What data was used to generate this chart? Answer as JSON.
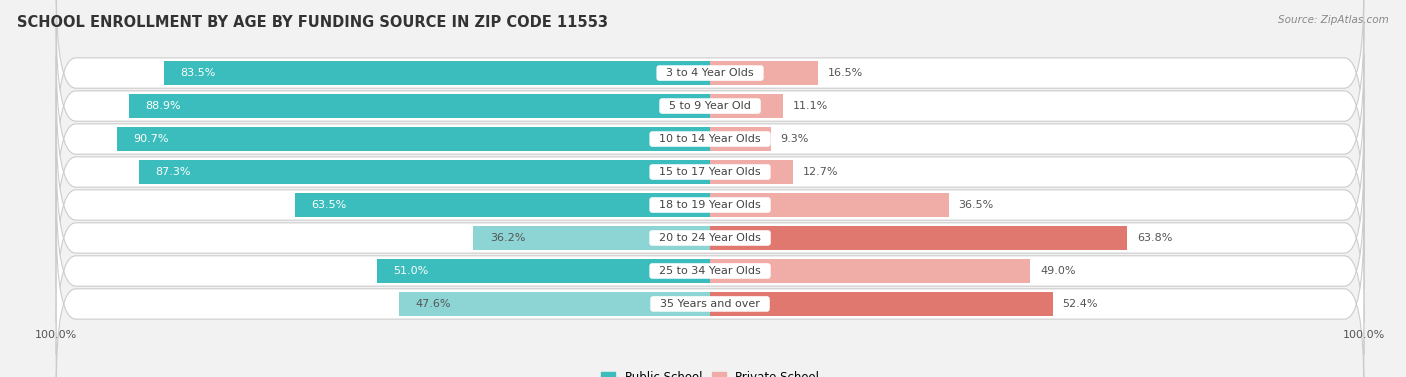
{
  "title": "SCHOOL ENROLLMENT BY AGE BY FUNDING SOURCE IN ZIP CODE 11553",
  "source": "Source: ZipAtlas.com",
  "categories": [
    "3 to 4 Year Olds",
    "5 to 9 Year Old",
    "10 to 14 Year Olds",
    "15 to 17 Year Olds",
    "18 to 19 Year Olds",
    "20 to 24 Year Olds",
    "25 to 34 Year Olds",
    "35 Years and over"
  ],
  "public_values": [
    83.5,
    88.9,
    90.7,
    87.3,
    63.5,
    36.2,
    51.0,
    47.6
  ],
  "private_values": [
    16.5,
    11.1,
    9.3,
    12.7,
    36.5,
    63.8,
    49.0,
    52.4
  ],
  "public_color_dark": "#3BBDBD",
  "public_color_light": "#8DD5D5",
  "private_color_dark": "#E07870",
  "private_color_light": "#F0ADA8",
  "row_bg_color": "#EBEBEB",
  "fig_bg_color": "#F2F2F2",
  "center_label_color": "#444444",
  "pub_value_label_color_dark": "#FFFFFF",
  "pub_value_label_color_light": "#555555",
  "priv_value_label_color_dark": "#FFFFFF",
  "priv_value_label_color_light": "#555555",
  "title_fontsize": 10.5,
  "label_fontsize": 8,
  "value_fontsize": 8,
  "bar_height": 0.72,
  "xlim_left": -100,
  "xlim_right": 100,
  "pub_threshold": 50,
  "priv_threshold": 50
}
